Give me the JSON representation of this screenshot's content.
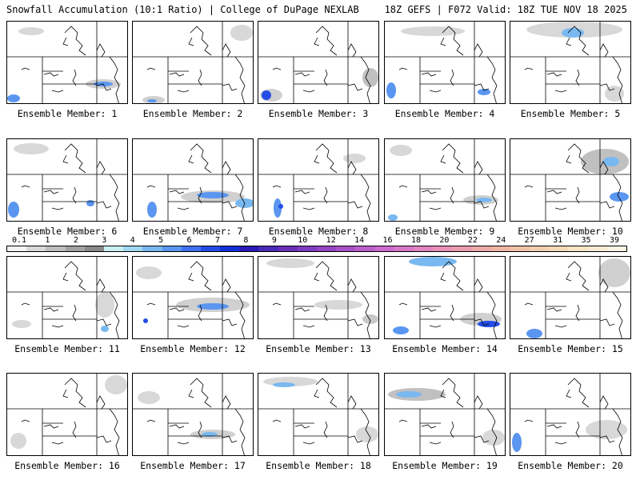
{
  "header": {
    "left": "Snowfall Accumulation (10:1 Ratio) | College of DuPage NEXLAB",
    "right": "18Z GEFS | F072 Valid: 18Z TUE NOV 18 2025"
  },
  "colorbar": {
    "labels": [
      "0.1",
      "1",
      "2",
      "3",
      "4",
      "5",
      "6",
      "7",
      "8",
      "9",
      "10",
      "12",
      "14",
      "16",
      "18",
      "20",
      "22",
      "24",
      "27",
      "31",
      "35",
      "39"
    ],
    "colors": [
      "#f4f4f4",
      "#d8d8d8",
      "#bdbdbd",
      "#a2a2a2",
      "#888888",
      "#c8f0f0",
      "#9fd8f0",
      "#79b8f0",
      "#5a96f0",
      "#3f72f0",
      "#244de8",
      "#1230d8",
      "#2a1ab8",
      "#4a2ab8",
      "#6a30b8",
      "#7e3cc0",
      "#9446c4",
      "#a852c8",
      "#bc5ecc",
      "#cc6cd0",
      "#d878c8",
      "#e284c0",
      "#e890b8",
      "#ea9cb0",
      "#ecaaa8",
      "#eeb6a4",
      "#f0c2a8",
      "#f2ceb0",
      "#f4dab8",
      "#f6e4c4",
      "#f8ecd4",
      "#faf2e2"
    ]
  },
  "members": [
    {
      "caption": "Ensemble Member: 1"
    },
    {
      "caption": "Ensemble Member: 2"
    },
    {
      "caption": "Ensemble Member: 3"
    },
    {
      "caption": "Ensemble Member: 4"
    },
    {
      "caption": "Ensemble Member: 5"
    },
    {
      "caption": "Ensemble Member: 6"
    },
    {
      "caption": "Ensemble Member: 7"
    },
    {
      "caption": "Ensemble Member: 8"
    },
    {
      "caption": "Ensemble Member: 9"
    },
    {
      "caption": "Ensemble Member: 10"
    },
    {
      "caption": "Ensemble Member: 11"
    },
    {
      "caption": "Ensemble Member: 12"
    },
    {
      "caption": "Ensemble Member: 13"
    },
    {
      "caption": "Ensemble Member: 14"
    },
    {
      "caption": "Ensemble Member: 15"
    },
    {
      "caption": "Ensemble Member: 16"
    },
    {
      "caption": "Ensemble Member: 17"
    },
    {
      "caption": "Ensemble Member: 18"
    },
    {
      "caption": "Ensemble Member: 19"
    },
    {
      "caption": "Ensemble Member: 20"
    }
  ]
}
